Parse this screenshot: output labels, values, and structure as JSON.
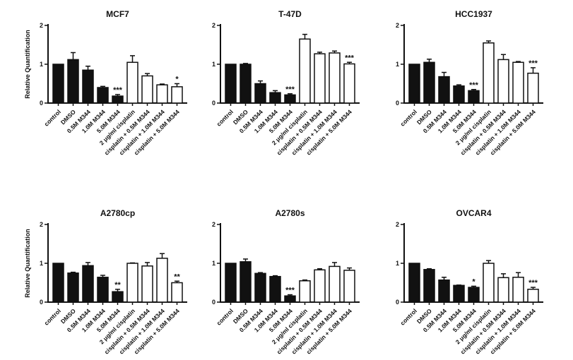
{
  "figure": {
    "background": "#ffffff",
    "bar_fill_black": "#111111",
    "bar_fill_white": "#ffffff",
    "axis_color": "#111111",
    "ylabel": "Relative Quantification"
  },
  "chart_data": [
    {
      "type": "bar",
      "title": "MCF7",
      "ylabel": "Relative Quantification",
      "show_ylabel": true,
      "ylim": [
        0,
        2
      ],
      "yticks": [
        0,
        1,
        2
      ],
      "grid": false,
      "legend": "none",
      "categories": [
        "control",
        "DMSO",
        "0.5M M344",
        "1.0M M344",
        "5.0M M344",
        "2 μg/ml cisplatin",
        "cisplatin + 0.5M M344",
        "cisplatin + 1.0M M344",
        "cisplatin + 5.0M M344"
      ],
      "values": [
        1.0,
        1.12,
        0.85,
        0.4,
        0.18,
        1.05,
        0.7,
        0.47,
        0.42
      ],
      "errors": [
        0,
        0.18,
        0.1,
        0.03,
        0.04,
        0.17,
        0.06,
        0.02,
        0.08
      ],
      "significance": [
        "",
        "",
        "",
        "",
        "***",
        "",
        "",
        "",
        "*"
      ],
      "bar_style": [
        "black",
        "black",
        "black",
        "black",
        "black",
        "white",
        "white",
        "white",
        "white"
      ]
    },
    {
      "type": "bar",
      "title": "T-47D",
      "ylabel": "",
      "show_ylabel": false,
      "ylim": [
        0,
        2
      ],
      "yticks": [
        0,
        1,
        2
      ],
      "grid": false,
      "legend": "none",
      "categories": [
        "control",
        "DMSO",
        "0.5M M344",
        "1.0M M344",
        "5.0M M344",
        "2 μg/ml cisplatin",
        "cisplatin + 0.5M M344",
        "cisplatin + 1.0M M344",
        "cisplatin + 5.0M M344"
      ],
      "values": [
        1.0,
        1.0,
        0.5,
        0.27,
        0.21,
        1.65,
        1.27,
        1.29,
        1.01
      ],
      "errors": [
        0,
        0.02,
        0.07,
        0.05,
        0.03,
        0.12,
        0.04,
        0.05,
        0.04
      ],
      "significance": [
        "",
        "",
        "",
        "",
        "***",
        "",
        "",
        "",
        "***"
      ],
      "bar_style": [
        "black",
        "black",
        "black",
        "black",
        "black",
        "white",
        "white",
        "white",
        "white"
      ]
    },
    {
      "type": "bar",
      "title": "HCC1937",
      "ylabel": "",
      "show_ylabel": false,
      "ylim": [
        0,
        2
      ],
      "yticks": [
        0,
        1,
        2
      ],
      "grid": false,
      "legend": "none",
      "categories": [
        "control",
        "DMSO",
        "0.5M M344",
        "1.0M M344",
        "5.0M M344",
        "2 μg/ml cisplatin",
        "cisplatin + 0.5M M344",
        "cisplatin + 1.0M M344",
        "cisplatin + 5.0M M344"
      ],
      "values": [
        1.0,
        1.05,
        0.68,
        0.44,
        0.32,
        1.55,
        1.12,
        1.05,
        0.77
      ],
      "errors": [
        0,
        0.08,
        0.11,
        0.03,
        0.03,
        0.05,
        0.13,
        0.02,
        0.14
      ],
      "significance": [
        "",
        "",
        "",
        "",
        "***",
        "",
        "",
        "",
        "***"
      ],
      "bar_style": [
        "black",
        "black",
        "black",
        "black",
        "black",
        "white",
        "white",
        "white",
        "white"
      ]
    },
    {
      "type": "bar",
      "title": "A2780cp",
      "ylabel": "Relative Quantification",
      "show_ylabel": true,
      "ylim": [
        0,
        2
      ],
      "yticks": [
        0,
        1,
        2
      ],
      "grid": false,
      "legend": "none",
      "categories": [
        "control",
        "DMSO",
        "0.5M M344",
        "1.0M M344",
        "5.0M M344",
        "2 μg/ml cisplatin",
        "cisplatin + 0.5M M344",
        "cisplatin + 1.0M M344",
        "cisplatin + 5.0M M344"
      ],
      "values": [
        1.0,
        0.75,
        0.94,
        0.64,
        0.27,
        1.0,
        0.93,
        1.13,
        0.5
      ],
      "errors": [
        0,
        0.02,
        0.08,
        0.05,
        0.06,
        0.01,
        0.09,
        0.12,
        0.04
      ],
      "significance": [
        "",
        "",
        "",
        "",
        "**",
        "",
        "",
        "",
        "**"
      ],
      "bar_style": [
        "black",
        "black",
        "black",
        "black",
        "black",
        "white",
        "white",
        "white",
        "white"
      ]
    },
    {
      "type": "bar",
      "title": "A2780s",
      "ylabel": "",
      "show_ylabel": false,
      "ylim": [
        0,
        2
      ],
      "yticks": [
        0,
        1,
        2
      ],
      "grid": false,
      "legend": "none",
      "categories": [
        "control",
        "DMSO",
        "0.5M M344",
        "1.0M M344",
        "5.0M M344",
        "2 μg/ml cisplatin",
        "cisplatin + 0.5M M344",
        "cisplatin + 1.0M M344",
        "cisplatin + 5.0M M344"
      ],
      "values": [
        1.0,
        1.04,
        0.74,
        0.66,
        0.16,
        0.55,
        0.83,
        0.92,
        0.82
      ],
      "errors": [
        0,
        0.07,
        0.02,
        0.02,
        0.03,
        0.02,
        0.03,
        0.1,
        0.06
      ],
      "significance": [
        "",
        "",
        "",
        "",
        "***",
        "",
        "",
        "",
        ""
      ],
      "bar_style": [
        "black",
        "black",
        "black",
        "black",
        "black",
        "white",
        "white",
        "white",
        "white"
      ]
    },
    {
      "type": "bar",
      "title": "OVCAR4",
      "ylabel": "",
      "show_ylabel": false,
      "ylim": [
        0,
        2
      ],
      "yticks": [
        0,
        1,
        2
      ],
      "grid": false,
      "legend": "none",
      "categories": [
        "control",
        "DMSO",
        "0.5M M344",
        "1.0M M344",
        "5.0M M344",
        "2 μg/ml cisplatin",
        "cisplatin + 0.5M M344",
        "cisplatin + 1.0M M344",
        "cisplatin + 5.0M M344"
      ],
      "values": [
        1.0,
        0.84,
        0.57,
        0.43,
        0.38,
        1.0,
        0.63,
        0.64,
        0.33
      ],
      "errors": [
        0,
        0.02,
        0.07,
        0.01,
        0.03,
        0.07,
        0.1,
        0.12,
        0.05
      ],
      "significance": [
        "",
        "",
        "",
        "",
        "*",
        "",
        "",
        "",
        "***"
      ],
      "bar_style": [
        "black",
        "black",
        "black",
        "black",
        "black",
        "white",
        "white",
        "white",
        "white"
      ]
    }
  ]
}
